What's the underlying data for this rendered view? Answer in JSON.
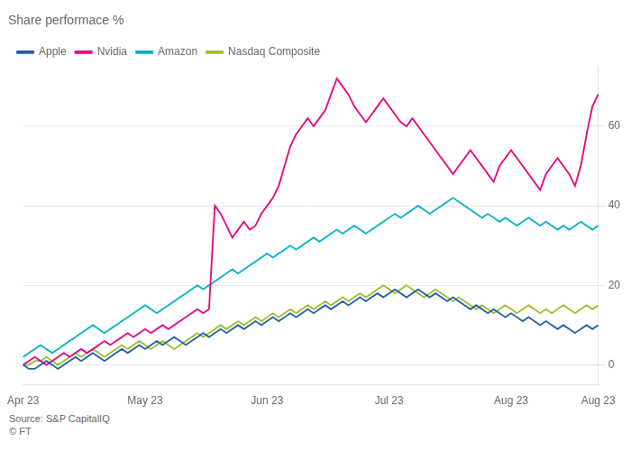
{
  "chart_data": {
    "type": "line",
    "title": "Share performace %",
    "annotations": [
      "Source: S&P CapitalIQ",
      "© FT"
    ],
    "categories": [
      "Apr 23",
      null,
      null,
      null,
      null,
      null,
      null,
      null,
      null,
      null,
      null,
      null,
      null,
      null,
      null,
      null,
      null,
      null,
      null,
      null,
      null,
      "May 23",
      null,
      null,
      null,
      null,
      null,
      null,
      null,
      null,
      null,
      null,
      null,
      null,
      null,
      null,
      null,
      null,
      null,
      null,
      null,
      null,
      "Jun 23",
      null,
      null,
      null,
      null,
      null,
      null,
      null,
      null,
      null,
      null,
      null,
      null,
      null,
      null,
      null,
      null,
      null,
      null,
      null,
      null,
      "Jul 23",
      null,
      null,
      null,
      null,
      null,
      null,
      null,
      null,
      null,
      null,
      null,
      null,
      null,
      null,
      null,
      null,
      null,
      null,
      null,
      null,
      "Aug 23",
      null,
      null,
      null,
      null,
      null,
      null,
      null,
      null,
      null,
      null,
      null,
      null,
      null,
      null,
      "Aug 23"
    ],
    "series": [
      {
        "name": "Apple",
        "color": "#1f5fa6",
        "values": [
          0,
          -1,
          -1,
          0,
          1,
          0,
          -1,
          0,
          1,
          2,
          1,
          2,
          3,
          2,
          1,
          2,
          3,
          4,
          3,
          4,
          5,
          4,
          5,
          6,
          5,
          6,
          7,
          6,
          5,
          6,
          7,
          8,
          7,
          8,
          9,
          8,
          9,
          10,
          9,
          10,
          11,
          10,
          11,
          12,
          11,
          12,
          13,
          12,
          13,
          14,
          13,
          14,
          15,
          14,
          15,
          16,
          15,
          16,
          17,
          16,
          17,
          18,
          17,
          18,
          19,
          18,
          17,
          18,
          19,
          18,
          17,
          18,
          17,
          16,
          17,
          16,
          15,
          14,
          15,
          14,
          13,
          14,
          13,
          12,
          13,
          12,
          11,
          12,
          11,
          10,
          11,
          10,
          9,
          10,
          9,
          8,
          9,
          10,
          9,
          10
        ]
      },
      {
        "name": "Nvidia",
        "color": "#e6007e",
        "values": [
          0,
          1,
          2,
          1,
          0,
          1,
          2,
          3,
          2,
          3,
          4,
          3,
          4,
          5,
          6,
          5,
          6,
          7,
          8,
          7,
          8,
          9,
          8,
          9,
          10,
          9,
          10,
          11,
          12,
          13,
          14,
          13,
          14,
          40,
          38,
          35,
          32,
          34,
          36,
          34,
          35,
          38,
          40,
          42,
          45,
          50,
          55,
          58,
          60,
          62,
          60,
          62,
          64,
          68,
          72,
          70,
          68,
          65,
          63,
          61,
          63,
          65,
          67,
          65,
          63,
          61,
          60,
          62,
          60,
          58,
          56,
          54,
          52,
          50,
          48,
          50,
          52,
          54,
          52,
          50,
          48,
          46,
          50,
          52,
          54,
          52,
          50,
          48,
          46,
          44,
          48,
          50,
          52,
          50,
          48,
          45,
          50,
          58,
          65,
          68
        ]
      },
      {
        "name": "Amazon",
        "color": "#00b0c8",
        "values": [
          2,
          3,
          4,
          5,
          4,
          3,
          4,
          5,
          6,
          7,
          8,
          9,
          10,
          9,
          8,
          9,
          10,
          11,
          12,
          13,
          14,
          15,
          14,
          13,
          14,
          15,
          16,
          17,
          18,
          19,
          20,
          19,
          20,
          21,
          22,
          23,
          24,
          23,
          24,
          25,
          26,
          27,
          28,
          27,
          28,
          29,
          30,
          29,
          30,
          31,
          32,
          31,
          32,
          33,
          34,
          33,
          34,
          35,
          34,
          33,
          34,
          35,
          36,
          37,
          38,
          37,
          38,
          39,
          40,
          39,
          38,
          39,
          40,
          41,
          42,
          41,
          40,
          39,
          38,
          37,
          38,
          37,
          36,
          37,
          36,
          35,
          36,
          37,
          36,
          35,
          36,
          35,
          34,
          35,
          34,
          35,
          36,
          35,
          34,
          35
        ]
      },
      {
        "name": "Nasdaq Composite",
        "color": "#9dbf2a",
        "values": [
          0,
          0,
          1,
          1,
          2,
          1,
          0,
          1,
          2,
          3,
          2,
          3,
          4,
          3,
          2,
          3,
          4,
          5,
          4,
          5,
          6,
          5,
          4,
          5,
          6,
          5,
          4,
          5,
          6,
          7,
          8,
          7,
          8,
          9,
          10,
          9,
          10,
          11,
          10,
          11,
          12,
          11,
          12,
          13,
          12,
          13,
          14,
          13,
          14,
          15,
          14,
          15,
          16,
          15,
          16,
          17,
          16,
          17,
          18,
          17,
          18,
          19,
          20,
          19,
          18,
          19,
          20,
          19,
          18,
          17,
          18,
          19,
          18,
          17,
          16,
          17,
          16,
          15,
          14,
          15,
          14,
          13,
          14,
          15,
          14,
          13,
          14,
          15,
          14,
          13,
          14,
          13,
          14,
          15,
          14,
          13,
          14,
          15,
          14,
          15
        ]
      }
    ],
    "ylim": [
      -5,
      75
    ],
    "yticks": [
      0,
      20,
      40,
      60
    ],
    "grid": true,
    "legend": "top-left"
  }
}
